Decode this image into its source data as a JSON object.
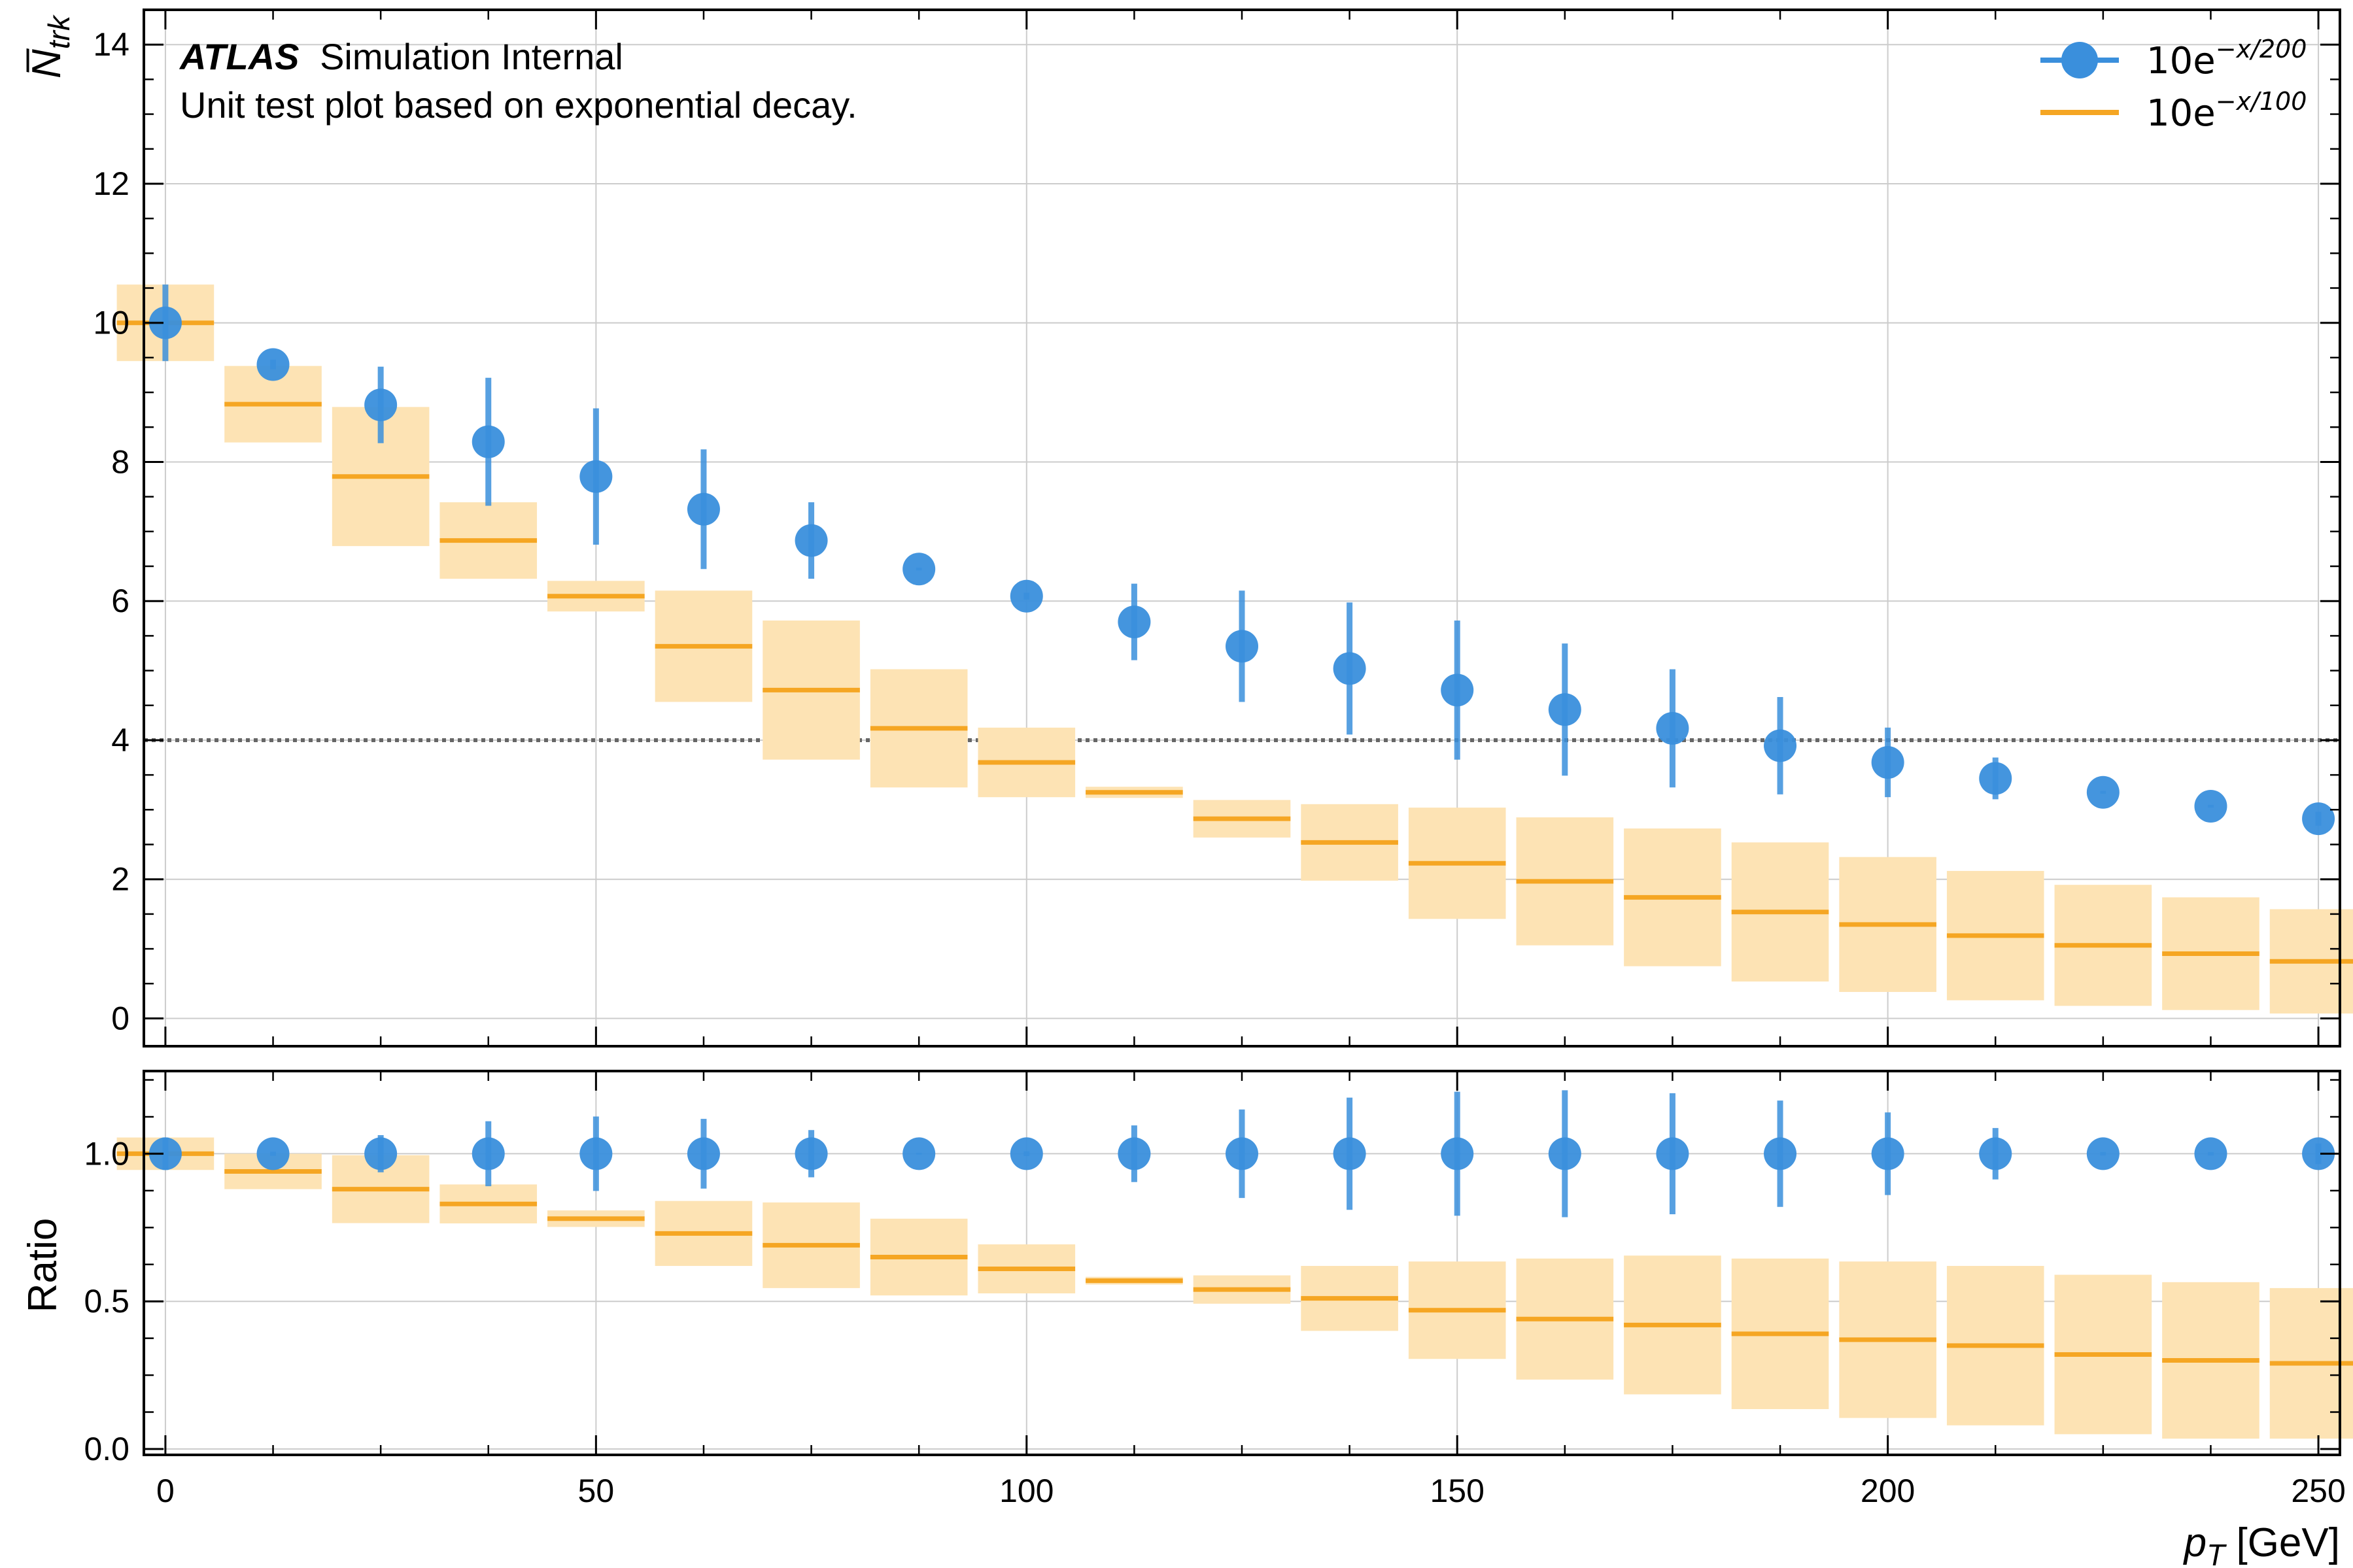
{
  "chart_data": [
    {
      "type": "scatter",
      "panel": "main",
      "ylabel": "N̅",
      "ylabel_sub": "trk",
      "xlim": [
        -2.5,
        252.5
      ],
      "ylim": [
        -0.4,
        14.5
      ],
      "yticks": [
        0,
        2,
        4,
        6,
        8,
        10,
        12,
        14
      ],
      "ytick_labels": [
        "0",
        "2",
        "4",
        "6",
        "8",
        "10",
        "12",
        "14"
      ],
      "grid": true,
      "legend_position": "top-right",
      "annotations": {
        "experiment": "ATLAS",
        "status": "Simulation Internal",
        "description": "Unit test plot based on exponential decay."
      },
      "reference_line": {
        "y": 4,
        "style": "dotted",
        "color": "#666666"
      },
      "x": [
        0,
        12.5,
        25,
        37.5,
        50,
        62.5,
        75,
        87.5,
        100,
        112.5,
        125,
        137.5,
        150,
        162.5,
        175,
        187.5,
        200,
        212.5,
        225,
        237.5,
        250
      ],
      "series": [
        {
          "name": "10e",
          "name_exponent": "−x/200",
          "style": "points",
          "color": "#3a8fdc",
          "values": [
            10,
            9.4,
            8.82,
            8.29,
            7.79,
            7.32,
            6.87,
            6.46,
            6.07,
            5.7,
            5.35,
            5.03,
            4.72,
            4.44,
            4.17,
            3.92,
            3.68,
            3.45,
            3.25,
            3.05,
            2.87
          ],
          "errors": [
            0.55,
            0.07,
            0.55,
            0.92,
            0.98,
            0.86,
            0.55,
            0.02,
            0.05,
            0.55,
            0.8,
            0.95,
            1.0,
            0.95,
            0.85,
            0.7,
            0.5,
            0.3,
            0.02,
            0.02,
            0.1
          ]
        },
        {
          "name": "10e",
          "name_exponent": "−x/100",
          "style": "step-band",
          "color": "#f5a623",
          "band_color": "#fde3b4",
          "values": [
            10,
            8.83,
            7.79,
            6.87,
            6.07,
            5.35,
            4.72,
            4.17,
            3.68,
            3.25,
            2.87,
            2.53,
            2.23,
            1.97,
            1.74,
            1.53,
            1.35,
            1.19,
            1.05,
            0.93,
            0.82
          ],
          "errors": [
            0.55,
            0.55,
            1.0,
            0.55,
            0.22,
            0.8,
            1.0,
            0.85,
            0.5,
            0.08,
            0.27,
            0.55,
            0.8,
            0.92,
            0.99,
            1.0,
            0.97,
            0.93,
            0.87,
            0.81,
            0.75
          ]
        }
      ]
    },
    {
      "type": "scatter",
      "panel": "ratio",
      "ylabel": "Ratio",
      "xlabel": "p",
      "xlabel_sub": "T",
      "xlabel_unit": " [GeV]",
      "xlim": [
        -2.5,
        252.5
      ],
      "ylim": [
        -0.02,
        1.28
      ],
      "xticks": [
        0,
        50,
        100,
        150,
        200,
        250
      ],
      "xtick_labels": [
        "0",
        "50",
        "100",
        "150",
        "200",
        "250"
      ],
      "yticks": [
        0,
        0.5,
        1
      ],
      "ytick_labels": [
        "0.0",
        "0.5",
        "1.0"
      ],
      "grid": true,
      "x": [
        0,
        12.5,
        25,
        37.5,
        50,
        62.5,
        75,
        87.5,
        100,
        112.5,
        125,
        137.5,
        150,
        162.5,
        175,
        187.5,
        200,
        212.5,
        225,
        237.5,
        250
      ],
      "series": [
        {
          "style": "points",
          "color": "#3a8fdc",
          "values": [
            1,
            1,
            1,
            1,
            1,
            1,
            1,
            1,
            1,
            1,
            1,
            1,
            1,
            1,
            1,
            1,
            1,
            1,
            1,
            1,
            1
          ],
          "errors": [
            0.055,
            0.007,
            0.063,
            0.11,
            0.126,
            0.118,
            0.08,
            0.003,
            0.008,
            0.096,
            0.15,
            0.19,
            0.21,
            0.215,
            0.205,
            0.18,
            0.14,
            0.087,
            0.006,
            0.006,
            0.035
          ]
        },
        {
          "style": "step-band",
          "color": "#f5a623",
          "band_color": "#fde3b4",
          "values": [
            1,
            0.94,
            0.88,
            0.83,
            0.78,
            0.73,
            0.69,
            0.65,
            0.61,
            0.57,
            0.54,
            0.51,
            0.47,
            0.44,
            0.42,
            0.39,
            0.37,
            0.35,
            0.32,
            0.3,
            0.29
          ],
          "errors": [
            0.055,
            0.06,
            0.115,
            0.066,
            0.028,
            0.11,
            0.145,
            0.13,
            0.083,
            0.013,
            0.048,
            0.11,
            0.165,
            0.205,
            0.235,
            0.255,
            0.265,
            0.27,
            0.27,
            0.265,
            0.255
          ]
        }
      ]
    }
  ]
}
